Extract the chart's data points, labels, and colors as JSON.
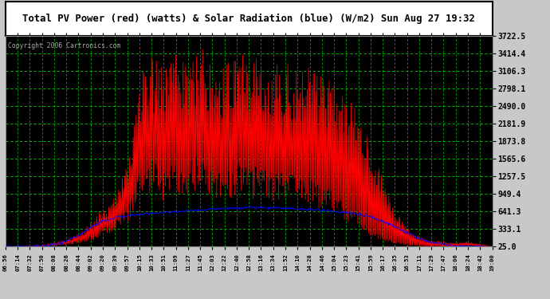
{
  "title": "Total PV Power (red) (watts) & Solar Radiation (blue) (W/m2) Sun Aug 27 19:32",
  "copyright": "Copyright 2006 Cartronics.com",
  "ytick_values": [
    25.0,
    333.1,
    641.3,
    949.4,
    1257.5,
    1565.6,
    1873.8,
    2181.9,
    2490.0,
    2798.1,
    3106.3,
    3414.4,
    3722.5
  ],
  "ymin": 25.0,
  "ymax": 3722.5,
  "plot_bg": "#000000",
  "outer_bg": "#c8c8c8",
  "title_bg": "#ffffff",
  "grid_color": "#00cc00",
  "x_labels": [
    "06:56",
    "07:14",
    "07:32",
    "07:50",
    "08:08",
    "08:26",
    "08:44",
    "09:02",
    "09:20",
    "09:39",
    "09:57",
    "10:15",
    "10:33",
    "10:51",
    "11:09",
    "11:27",
    "11:45",
    "12:03",
    "12:22",
    "12:40",
    "12:58",
    "13:16",
    "13:34",
    "13:52",
    "14:10",
    "14:28",
    "14:46",
    "15:04",
    "15:23",
    "15:41",
    "15:59",
    "16:17",
    "16:35",
    "16:53",
    "17:11",
    "17:29",
    "17:47",
    "18:06",
    "18:24",
    "18:42",
    "19:00"
  ],
  "n_xlabels": 41,
  "red_base": [
    25,
    25,
    30,
    40,
    60,
    90,
    130,
    200,
    350,
    500,
    700,
    1400,
    1600,
    1300,
    1600,
    1500,
    1700,
    1500,
    1300,
    1600,
    1400,
    1500,
    1300,
    1400,
    1200,
    1300,
    1100,
    1000,
    800,
    600,
    350,
    200,
    120,
    80,
    50,
    40,
    30,
    30,
    50,
    40,
    25
  ],
  "red_peak": [
    25,
    30,
    40,
    60,
    100,
    150,
    250,
    450,
    700,
    900,
    1500,
    3000,
    3400,
    3200,
    3500,
    3400,
    3600,
    3300,
    3200,
    3500,
    3300,
    3400,
    3200,
    3300,
    3100,
    3200,
    3000,
    2900,
    2700,
    2500,
    1800,
    1300,
    700,
    400,
    200,
    150,
    120,
    100,
    120,
    80,
    25
  ],
  "blue_vals": [
    25,
    25,
    28,
    35,
    60,
    120,
    220,
    360,
    480,
    530,
    565,
    590,
    610,
    625,
    640,
    655,
    670,
    680,
    695,
    705,
    710,
    705,
    710,
    700,
    685,
    675,
    660,
    645,
    625,
    595,
    550,
    470,
    375,
    270,
    170,
    100,
    65,
    40,
    30,
    28,
    25
  ]
}
